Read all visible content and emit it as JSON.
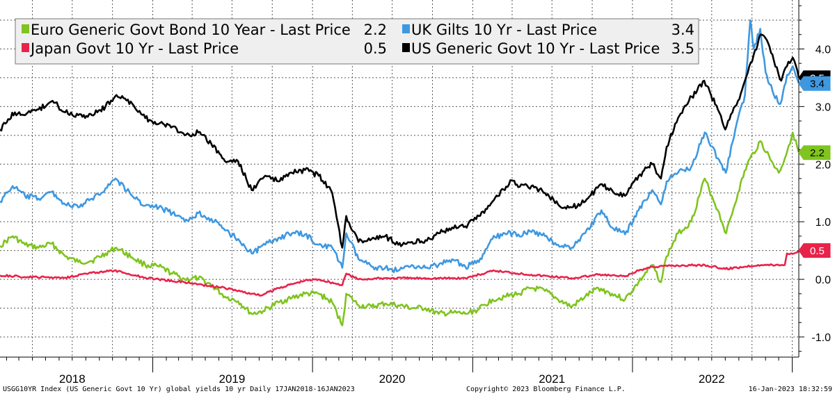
{
  "chart_data": {
    "type": "line",
    "x_range": [
      "2018-01-17",
      "2023-01-16"
    ],
    "ylim": [
      -1.35,
      4.85
    ],
    "y_ticks": [
      {
        "value": 4.0,
        "label": "4.0"
      },
      {
        "value": 3.0,
        "label": "3.0"
      },
      {
        "value": 2.0,
        "label": "2.0"
      },
      {
        "value": 1.0,
        "label": "1.0"
      },
      {
        "value": 0.0,
        "label": "0.0"
      },
      {
        "value": -1.0,
        "label": "-1.0"
      }
    ],
    "year_labels": [
      {
        "label": "2018",
        "date": "2018-07-01"
      },
      {
        "label": "2019",
        "date": "2019-07-01"
      },
      {
        "label": "2020",
        "date": "2020-07-01"
      },
      {
        "label": "2021",
        "date": "2021-07-01"
      },
      {
        "label": "2022",
        "date": "2022-07-01"
      }
    ],
    "grid": true,
    "legend_position": "top-left",
    "series": [
      {
        "name": "Euro Generic Govt Bond 10 Year - Last Price",
        "last": "2.2",
        "color": "#7fc41f",
        "points": [
          [
            "2018-01-17",
            0.58
          ],
          [
            "2018-02-15",
            0.75
          ],
          [
            "2018-03-15",
            0.6
          ],
          [
            "2018-04-15",
            0.55
          ],
          [
            "2018-05-15",
            0.62
          ],
          [
            "2018-06-15",
            0.4
          ],
          [
            "2018-07-15",
            0.3
          ],
          [
            "2018-08-15",
            0.32
          ],
          [
            "2018-09-15",
            0.45
          ],
          [
            "2018-10-10",
            0.55
          ],
          [
            "2018-11-15",
            0.38
          ],
          [
            "2018-12-15",
            0.25
          ],
          [
            "2019-01-15",
            0.22
          ],
          [
            "2019-02-15",
            0.1
          ],
          [
            "2019-03-15",
            0.0
          ],
          [
            "2019-04-15",
            0.02
          ],
          [
            "2019-05-15",
            -0.1
          ],
          [
            "2019-06-15",
            -0.3
          ],
          [
            "2019-07-15",
            -0.38
          ],
          [
            "2019-08-15",
            -0.6
          ],
          [
            "2019-09-10",
            -0.55
          ],
          [
            "2019-10-15",
            -0.4
          ],
          [
            "2019-11-15",
            -0.32
          ],
          [
            "2019-12-15",
            -0.25
          ],
          [
            "2020-01-15",
            -0.25
          ],
          [
            "2020-02-15",
            -0.4
          ],
          [
            "2020-03-09",
            -0.8
          ],
          [
            "2020-03-18",
            -0.25
          ],
          [
            "2020-04-15",
            -0.45
          ],
          [
            "2020-05-15",
            -0.48
          ],
          [
            "2020-06-15",
            -0.42
          ],
          [
            "2020-07-15",
            -0.45
          ],
          [
            "2020-08-15",
            -0.5
          ],
          [
            "2020-09-15",
            -0.5
          ],
          [
            "2020-10-15",
            -0.6
          ],
          [
            "2020-11-15",
            -0.58
          ],
          [
            "2020-12-15",
            -0.6
          ],
          [
            "2021-01-15",
            -0.52
          ],
          [
            "2021-02-15",
            -0.35
          ],
          [
            "2021-03-15",
            -0.3
          ],
          [
            "2021-04-15",
            -0.25
          ],
          [
            "2021-05-15",
            -0.15
          ],
          [
            "2021-06-15",
            -0.2
          ],
          [
            "2021-07-15",
            -0.35
          ],
          [
            "2021-08-15",
            -0.48
          ],
          [
            "2021-09-15",
            -0.3
          ],
          [
            "2021-10-15",
            -0.15
          ],
          [
            "2021-11-15",
            -0.25
          ],
          [
            "2021-12-15",
            -0.35
          ],
          [
            "2022-01-15",
            -0.05
          ],
          [
            "2022-02-15",
            0.25
          ],
          [
            "2022-03-07",
            -0.05
          ],
          [
            "2022-03-20",
            0.4
          ],
          [
            "2022-04-15",
            0.8
          ],
          [
            "2022-05-15",
            1.0
          ],
          [
            "2022-06-15",
            1.75
          ],
          [
            "2022-07-15",
            1.2
          ],
          [
            "2022-08-03",
            0.8
          ],
          [
            "2022-08-30",
            1.5
          ],
          [
            "2022-09-20",
            2.0
          ],
          [
            "2022-10-20",
            2.4
          ],
          [
            "2022-11-15",
            2.05
          ],
          [
            "2022-12-01",
            1.85
          ],
          [
            "2022-12-15",
            2.1
          ],
          [
            "2023-01-02",
            2.55
          ],
          [
            "2023-01-16",
            2.2
          ]
        ]
      },
      {
        "name": "UK Gilts 10 Yr - Last Price",
        "last": "3.4",
        "color": "#3e98e0",
        "points": [
          [
            "2018-01-17",
            1.35
          ],
          [
            "2018-02-15",
            1.62
          ],
          [
            "2018-03-15",
            1.45
          ],
          [
            "2018-04-15",
            1.4
          ],
          [
            "2018-05-15",
            1.52
          ],
          [
            "2018-06-15",
            1.3
          ],
          [
            "2018-07-15",
            1.25
          ],
          [
            "2018-08-15",
            1.4
          ],
          [
            "2018-09-15",
            1.58
          ],
          [
            "2018-10-08",
            1.75
          ],
          [
            "2018-11-15",
            1.45
          ],
          [
            "2018-12-15",
            1.28
          ],
          [
            "2019-01-15",
            1.25
          ],
          [
            "2019-02-15",
            1.15
          ],
          [
            "2019-03-15",
            1.0
          ],
          [
            "2019-04-15",
            1.15
          ],
          [
            "2019-05-15",
            1.05
          ],
          [
            "2019-06-15",
            0.85
          ],
          [
            "2019-07-15",
            0.7
          ],
          [
            "2019-08-15",
            0.45
          ],
          [
            "2019-09-15",
            0.6
          ],
          [
            "2019-10-15",
            0.72
          ],
          [
            "2019-11-15",
            0.8
          ],
          [
            "2019-12-15",
            0.78
          ],
          [
            "2020-01-15",
            0.6
          ],
          [
            "2020-02-15",
            0.55
          ],
          [
            "2020-03-09",
            0.2
          ],
          [
            "2020-03-18",
            0.8
          ],
          [
            "2020-04-15",
            0.35
          ],
          [
            "2020-05-15",
            0.22
          ],
          [
            "2020-06-15",
            0.2
          ],
          [
            "2020-07-15",
            0.15
          ],
          [
            "2020-08-15",
            0.25
          ],
          [
            "2020-09-15",
            0.2
          ],
          [
            "2020-10-15",
            0.25
          ],
          [
            "2020-11-15",
            0.35
          ],
          [
            "2020-12-15",
            0.22
          ],
          [
            "2021-01-15",
            0.3
          ],
          [
            "2021-02-15",
            0.7
          ],
          [
            "2021-03-15",
            0.8
          ],
          [
            "2021-04-15",
            0.78
          ],
          [
            "2021-05-15",
            0.82
          ],
          [
            "2021-06-15",
            0.75
          ],
          [
            "2021-07-15",
            0.6
          ],
          [
            "2021-08-15",
            0.55
          ],
          [
            "2021-09-15",
            0.8
          ],
          [
            "2021-10-22",
            1.2
          ],
          [
            "2021-11-15",
            0.9
          ],
          [
            "2021-12-15",
            0.78
          ],
          [
            "2022-01-15",
            1.2
          ],
          [
            "2022-02-15",
            1.55
          ],
          [
            "2022-03-07",
            1.3
          ],
          [
            "2022-03-20",
            1.7
          ],
          [
            "2022-04-15",
            1.85
          ],
          [
            "2022-05-15",
            1.95
          ],
          [
            "2022-06-15",
            2.55
          ],
          [
            "2022-07-15",
            2.1
          ],
          [
            "2022-08-02",
            1.85
          ],
          [
            "2022-08-30",
            2.8
          ],
          [
            "2022-09-15",
            3.2
          ],
          [
            "2022-09-27",
            4.5
          ],
          [
            "2022-10-05",
            4.0
          ],
          [
            "2022-10-20",
            4.35
          ],
          [
            "2022-11-01",
            3.6
          ],
          [
            "2022-11-20",
            3.2
          ],
          [
            "2022-12-05",
            3.05
          ],
          [
            "2022-12-20",
            3.55
          ],
          [
            "2023-01-02",
            3.7
          ],
          [
            "2023-01-16",
            3.4
          ]
        ]
      },
      {
        "name": "Japan Govt 10 Yr - Last Price",
        "last": "0.5",
        "color": "#e8234a",
        "points": [
          [
            "2018-01-17",
            0.07
          ],
          [
            "2018-03-15",
            0.04
          ],
          [
            "2018-06-15",
            0.03
          ],
          [
            "2018-08-01",
            0.1
          ],
          [
            "2018-10-05",
            0.15
          ],
          [
            "2018-12-15",
            0.03
          ],
          [
            "2019-01-15",
            0.0
          ],
          [
            "2019-03-15",
            -0.05
          ],
          [
            "2019-06-15",
            -0.15
          ],
          [
            "2019-08-15",
            -0.25
          ],
          [
            "2019-09-05",
            -0.28
          ],
          [
            "2019-10-15",
            -0.15
          ],
          [
            "2019-12-15",
            -0.02
          ],
          [
            "2020-01-15",
            0.0
          ],
          [
            "2020-03-09",
            -0.1
          ],
          [
            "2020-03-18",
            0.1
          ],
          [
            "2020-04-15",
            0.0
          ],
          [
            "2020-06-15",
            0.02
          ],
          [
            "2020-09-15",
            0.02
          ],
          [
            "2020-12-15",
            0.02
          ],
          [
            "2021-02-20",
            0.15
          ],
          [
            "2021-05-15",
            0.08
          ],
          [
            "2021-08-15",
            0.02
          ],
          [
            "2021-10-15",
            0.08
          ],
          [
            "2021-12-15",
            0.05
          ],
          [
            "2022-01-15",
            0.15
          ],
          [
            "2022-02-15",
            0.22
          ],
          [
            "2022-04-15",
            0.24
          ],
          [
            "2022-06-15",
            0.25
          ],
          [
            "2022-08-01",
            0.18
          ],
          [
            "2022-10-15",
            0.25
          ],
          [
            "2022-12-15",
            0.25
          ],
          [
            "2022-12-20",
            0.45
          ],
          [
            "2023-01-05",
            0.45
          ],
          [
            "2023-01-16",
            0.5
          ]
        ]
      },
      {
        "name": "US Generic Govt 10 Yr - Last Price",
        "last": "3.5",
        "color": "#000000",
        "points": [
          [
            "2018-01-17",
            2.6
          ],
          [
            "2018-02-20",
            2.9
          ],
          [
            "2018-03-15",
            2.85
          ],
          [
            "2018-04-15",
            2.95
          ],
          [
            "2018-05-17",
            3.1
          ],
          [
            "2018-06-15",
            2.9
          ],
          [
            "2018-07-15",
            2.85
          ],
          [
            "2018-08-15",
            2.85
          ],
          [
            "2018-09-15",
            3.0
          ],
          [
            "2018-10-10",
            3.2
          ],
          [
            "2018-11-15",
            3.05
          ],
          [
            "2018-12-15",
            2.8
          ],
          [
            "2019-01-15",
            2.7
          ],
          [
            "2019-02-15",
            2.65
          ],
          [
            "2019-03-15",
            2.5
          ],
          [
            "2019-04-15",
            2.55
          ],
          [
            "2019-05-15",
            2.35
          ],
          [
            "2019-06-15",
            2.05
          ],
          [
            "2019-07-15",
            2.05
          ],
          [
            "2019-08-15",
            1.55
          ],
          [
            "2019-09-15",
            1.8
          ],
          [
            "2019-10-15",
            1.7
          ],
          [
            "2019-11-15",
            1.85
          ],
          [
            "2019-12-15",
            1.9
          ],
          [
            "2020-01-15",
            1.8
          ],
          [
            "2020-02-15",
            1.5
          ],
          [
            "2020-03-09",
            0.55
          ],
          [
            "2020-03-18",
            1.1
          ],
          [
            "2020-04-15",
            0.65
          ],
          [
            "2020-05-15",
            0.7
          ],
          [
            "2020-06-15",
            0.75
          ],
          [
            "2020-07-15",
            0.6
          ],
          [
            "2020-08-15",
            0.65
          ],
          [
            "2020-09-15",
            0.68
          ],
          [
            "2020-10-15",
            0.8
          ],
          [
            "2020-11-15",
            0.9
          ],
          [
            "2020-12-15",
            0.92
          ],
          [
            "2021-01-15",
            1.1
          ],
          [
            "2021-02-15",
            1.35
          ],
          [
            "2021-03-31",
            1.72
          ],
          [
            "2021-04-15",
            1.6
          ],
          [
            "2021-05-15",
            1.62
          ],
          [
            "2021-06-15",
            1.5
          ],
          [
            "2021-07-15",
            1.3
          ],
          [
            "2021-08-15",
            1.25
          ],
          [
            "2021-09-15",
            1.35
          ],
          [
            "2021-10-20",
            1.65
          ],
          [
            "2021-11-15",
            1.55
          ],
          [
            "2021-12-15",
            1.45
          ],
          [
            "2022-01-15",
            1.8
          ],
          [
            "2022-02-15",
            2.0
          ],
          [
            "2022-03-07",
            1.75
          ],
          [
            "2022-03-20",
            2.3
          ],
          [
            "2022-04-15",
            2.8
          ],
          [
            "2022-05-10",
            3.1
          ],
          [
            "2022-06-14",
            3.45
          ],
          [
            "2022-07-15",
            2.95
          ],
          [
            "2022-08-01",
            2.6
          ],
          [
            "2022-08-30",
            3.1
          ],
          [
            "2022-09-15",
            3.45
          ],
          [
            "2022-10-21",
            4.25
          ],
          [
            "2022-11-07",
            4.1
          ],
          [
            "2022-11-20",
            3.8
          ],
          [
            "2022-12-07",
            3.45
          ],
          [
            "2022-12-20",
            3.7
          ],
          [
            "2023-01-02",
            3.85
          ],
          [
            "2023-01-16",
            3.5
          ]
        ]
      }
    ],
    "last_value_tags": [
      {
        "series": 3,
        "label": "3.5",
        "value": 3.5
      },
      {
        "series": 1,
        "label": "3.4",
        "value": 3.4
      },
      {
        "series": 0,
        "label": "2.2",
        "value": 2.2
      },
      {
        "series": 2,
        "label": "0.5",
        "value": 0.5
      }
    ]
  },
  "footer": {
    "left": "USGG10YR Index (US Generic Govt 10 Yr) global yields 10 yr  Daily 17JAN2018-16JAN2023",
    "center": "Copyright© 2023 Bloomberg Finance L.P.",
    "right": "16-Jan-2023 18:32:59"
  },
  "colors": {
    "grid": "#555555",
    "legend_bg": "#efefef",
    "axis": "#000000"
  }
}
